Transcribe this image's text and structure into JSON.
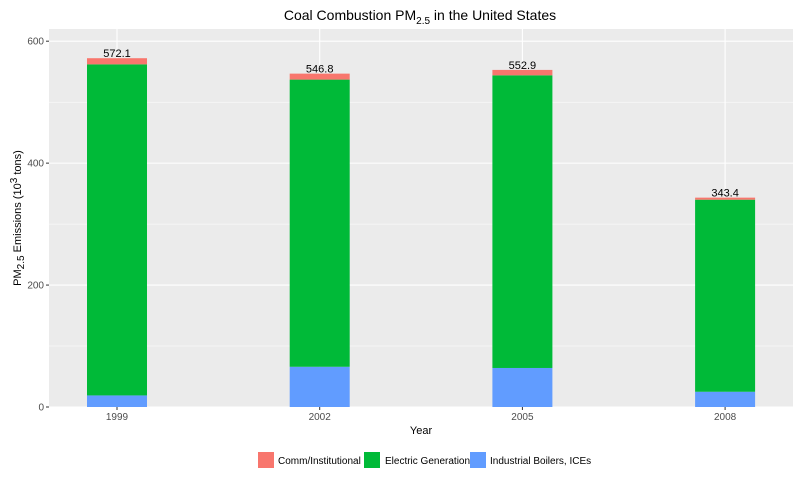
{
  "chart_data": {
    "type": "bar",
    "stacked": true,
    "title": {
      "prefix": "Coal Combustion PM",
      "subscript": "2.5",
      "suffix": " in the United States"
    },
    "xlabel": "Year",
    "ylabel": {
      "part1": "PM",
      "sub": "2.5",
      "part2": " Emissions (10",
      "sup": "3",
      "part3": " tons)"
    },
    "categories": [
      "1999",
      "2002",
      "2005",
      "2008"
    ],
    "ylim": [
      0,
      620
    ],
    "yticks": [
      0,
      200,
      400,
      600
    ],
    "series": [
      {
        "name": "Industrial Boilers, ICEs",
        "color": "#619CFF",
        "values": [
          19,
          66,
          64,
          25
        ]
      },
      {
        "name": "Electric Generation",
        "color": "#00BA38",
        "values": [
          543,
          471,
          480,
          315
        ]
      },
      {
        "name": "Comm/Institutional",
        "color": "#F8766D",
        "values": [
          10.1,
          9.8,
          8.9,
          3.4
        ]
      }
    ],
    "totals": [
      "572.1",
      "546.8",
      "552.9",
      "343.4"
    ],
    "legend": {
      "position": "bottom",
      "order": [
        "Comm/Institutional",
        "Electric Generation",
        "Industrial Boilers, ICEs"
      ]
    },
    "grid": true
  }
}
